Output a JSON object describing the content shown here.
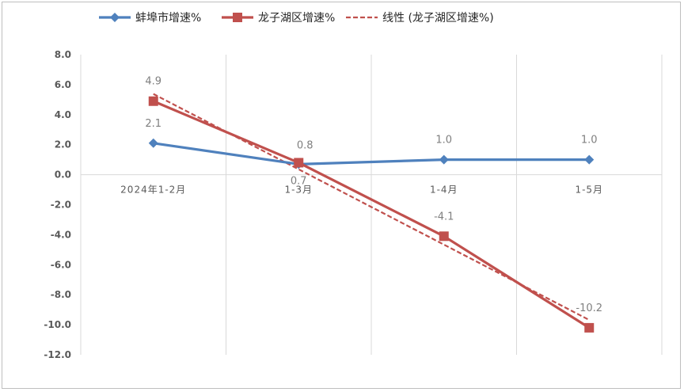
{
  "chart_data": {
    "type": "line",
    "categories": [
      "2024年1-2月",
      "1-3月",
      "1-4月",
      "1-5月"
    ],
    "ylim": [
      -12.0,
      8.0
    ],
    "ytick_step": 2.0,
    "yticks": [
      "8.0",
      "6.0",
      "4.0",
      "2.0",
      "0.0",
      "-2.0",
      "-4.0",
      "-6.0",
      "-8.0",
      "-10.0",
      "-12.0"
    ],
    "grid": "vertical",
    "legend_position": "top",
    "series": [
      {
        "name": "蚌埠市增速%",
        "values": [
          2.1,
          0.7,
          1.0,
          1.0
        ],
        "labels": [
          "2.1",
          "0.7",
          "1.0",
          "1.0"
        ],
        "color": "#4F81BD",
        "marker": "diamond"
      },
      {
        "name": "龙子湖区增速%",
        "values": [
          4.9,
          0.8,
          -4.1,
          -10.2
        ],
        "labels": [
          "4.9",
          "0.8",
          "-4.1",
          "-10.2"
        ],
        "color": "#C0504D",
        "marker": "square"
      }
    ],
    "trendline": {
      "name": "线性 (龙子湖区增速%)",
      "of_series": "龙子湖区增速%",
      "type": "linear",
      "color": "#C0504D",
      "style": "dashed"
    }
  }
}
